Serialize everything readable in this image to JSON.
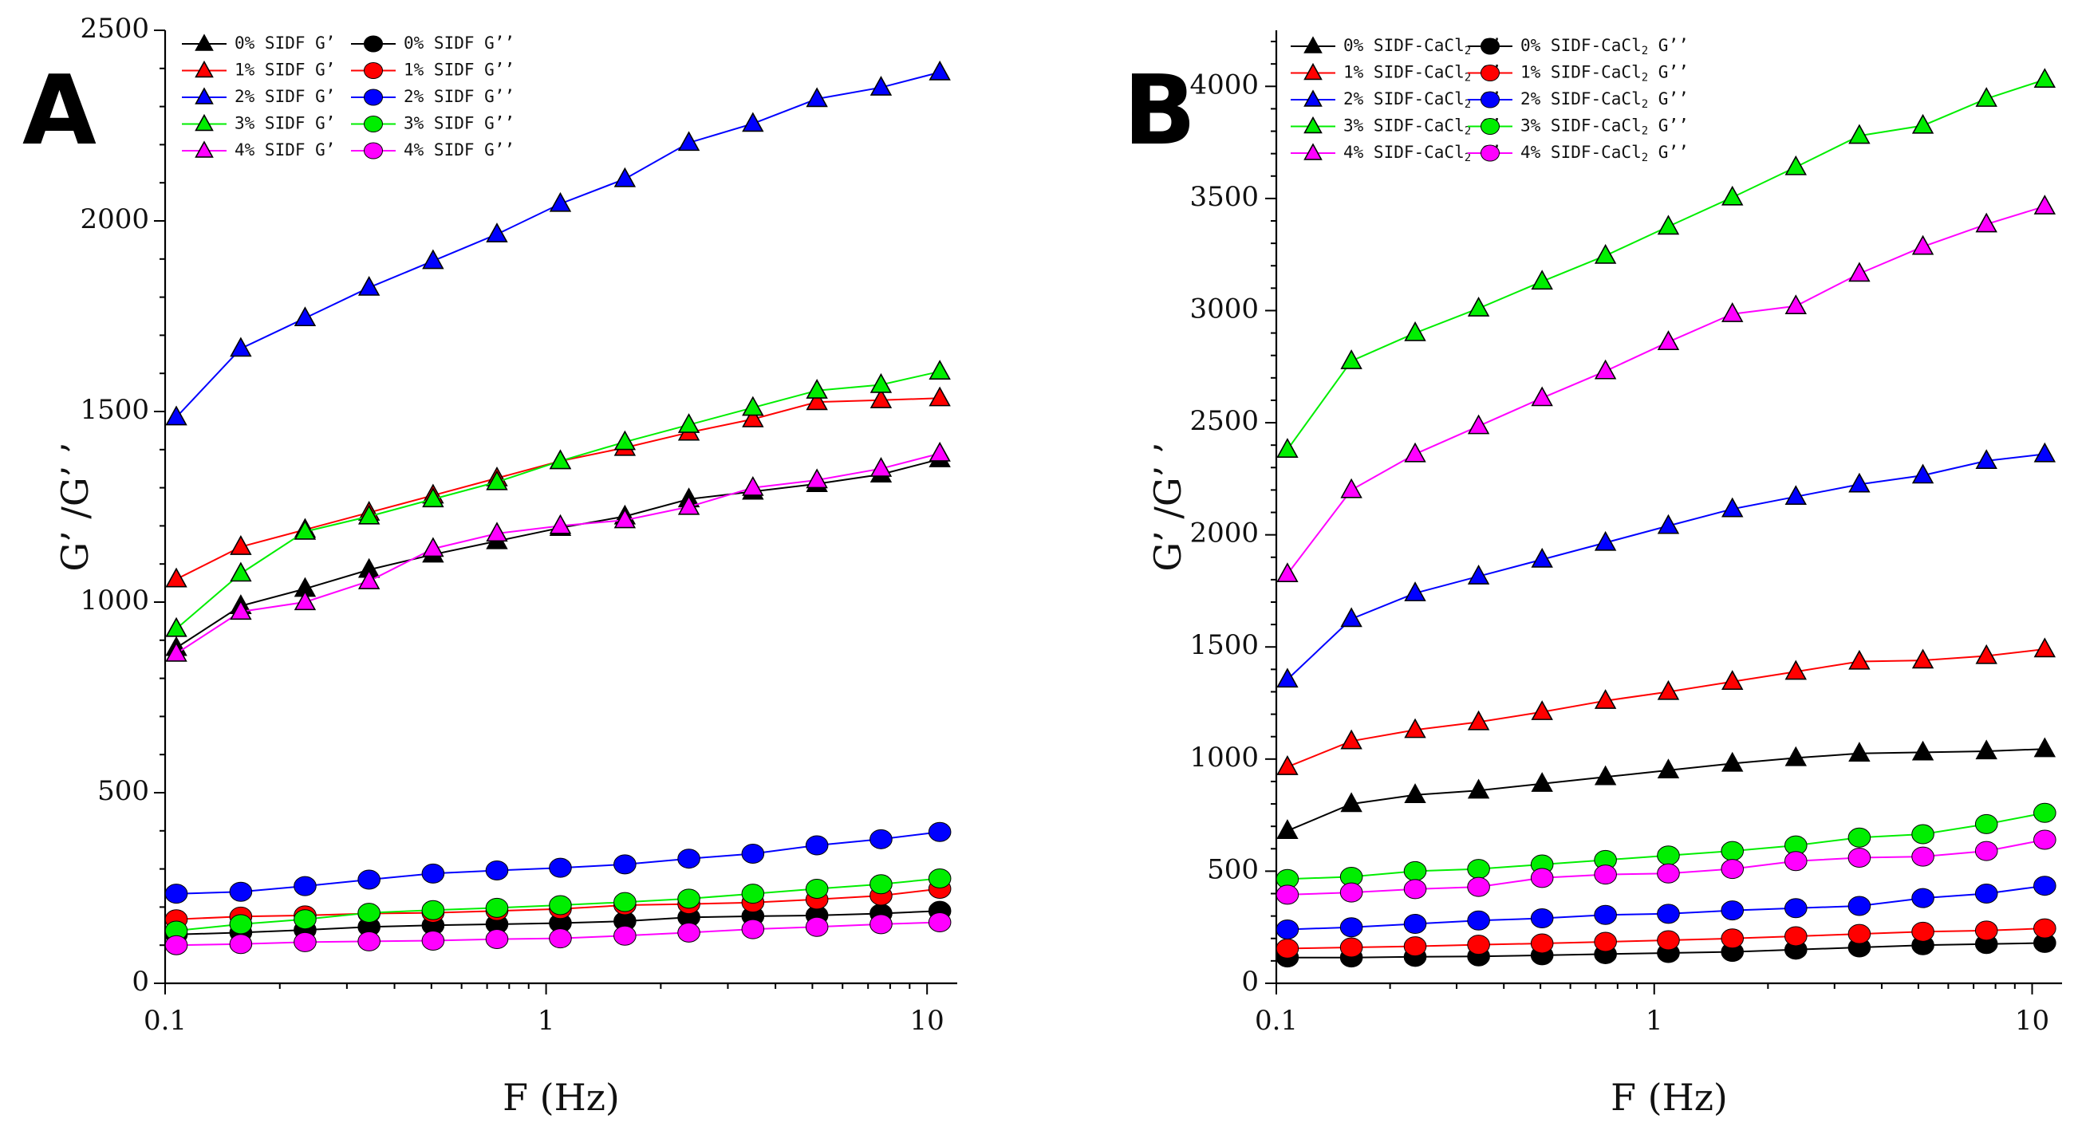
{
  "chart_data": [
    {
      "panel_label": "A",
      "type": "line",
      "xscale": "log",
      "xlabel": "F (Hz)",
      "ylabel": "G’ /G’ ’",
      "xlim": [
        0.1,
        12
      ],
      "ylim": [
        0,
        2500
      ],
      "x_ticks": [
        0.1,
        1,
        10
      ],
      "x_tick_labels": [
        "0.1",
        "1",
        "10"
      ],
      "y_ticks": [
        0,
        500,
        1000,
        1500,
        2000,
        2500
      ],
      "y_tick_labels": [
        "0",
        "500",
        "1000",
        "1500",
        "2000",
        "2500"
      ],
      "legend_position": "top-left",
      "x": [
        0.107,
        0.158,
        0.233,
        0.343,
        0.505,
        0.743,
        1.09,
        1.61,
        2.37,
        3.49,
        5.14,
        7.57,
        10.8
      ],
      "series": [
        {
          "name": "0% SIDF G’",
          "marker": "triangle",
          "color": "#000000",
          "values": [
            880,
            990,
            1035,
            1085,
            1125,
            1160,
            1195,
            1225,
            1270,
            1290,
            1310,
            1335,
            1375
          ]
        },
        {
          "name": "1% SIDF G’",
          "marker": "triangle",
          "color": "#ff0000",
          "values": [
            1060,
            1145,
            1190,
            1235,
            1280,
            1325,
            1370,
            1405,
            1445,
            1480,
            1525,
            1530,
            1535
          ]
        },
        {
          "name": "2% SIDF G’",
          "marker": "triangle",
          "color": "#0000ff",
          "values": [
            1485,
            1665,
            1745,
            1825,
            1895,
            1965,
            2045,
            2110,
            2205,
            2255,
            2320,
            2350,
            2390
          ]
        },
        {
          "name": "3% SIDF G’",
          "marker": "triangle",
          "color": "#00ee00",
          "values": [
            930,
            1075,
            1185,
            1225,
            1270,
            1315,
            1370,
            1420,
            1465,
            1510,
            1555,
            1570,
            1605
          ]
        },
        {
          "name": "4% SIDF G’",
          "marker": "triangle",
          "color": "#ff00ff",
          "values": [
            865,
            975,
            1000,
            1055,
            1140,
            1180,
            1200,
            1215,
            1250,
            1300,
            1320,
            1350,
            1390
          ]
        },
        {
          "name": "0% SIDF G’’",
          "marker": "circle",
          "color": "#000000",
          "values": [
            128,
            133,
            140,
            148,
            152,
            155,
            158,
            163,
            173,
            176,
            178,
            183,
            190
          ]
        },
        {
          "name": "1% SIDF G’’",
          "marker": "circle",
          "color": "#ff0000",
          "values": [
            168,
            175,
            178,
            183,
            185,
            190,
            195,
            205,
            208,
            212,
            220,
            230,
            248
          ]
        },
        {
          "name": "2% SIDF G’’",
          "marker": "circle",
          "color": "#0000ff",
          "values": [
            235,
            240,
            255,
            272,
            288,
            296,
            303,
            312,
            327,
            340,
            362,
            378,
            397
          ]
        },
        {
          "name": "3% SIDF G’’",
          "marker": "circle",
          "color": "#00ee00",
          "values": [
            138,
            155,
            168,
            185,
            192,
            198,
            205,
            213,
            222,
            235,
            248,
            260,
            275
          ]
        },
        {
          "name": "4% SIDF G’’",
          "marker": "circle",
          "color": "#ff00ff",
          "values": [
            100,
            103,
            108,
            110,
            112,
            116,
            118,
            125,
            133,
            142,
            148,
            155,
            160
          ]
        }
      ]
    },
    {
      "panel_label": "B",
      "type": "line",
      "xscale": "log",
      "xlabel": "F (Hz)",
      "ylabel": "G’ /G’ ’",
      "xlim": [
        0.1,
        12
      ],
      "ylim": [
        0,
        4250
      ],
      "x_ticks": [
        0.1,
        1,
        10
      ],
      "x_tick_labels": [
        "0.1",
        "1",
        "10"
      ],
      "y_ticks": [
        0,
        500,
        1000,
        1500,
        2000,
        2500,
        3000,
        3500,
        4000
      ],
      "y_tick_labels": [
        "0",
        "500",
        "1000",
        "1500",
        "2000",
        "2500",
        "3000",
        "3500",
        "4000"
      ],
      "legend_position": "top-left",
      "x": [
        0.107,
        0.158,
        0.233,
        0.343,
        0.505,
        0.743,
        1.09,
        1.61,
        2.37,
        3.49,
        5.14,
        7.57,
        10.8
      ],
      "series": [
        {
          "name": "0% SIDF-CaCl2 G’",
          "marker": "triangle",
          "color": "#000000",
          "values": [
            680,
            800,
            840,
            860,
            890,
            920,
            950,
            980,
            1005,
            1025,
            1030,
            1035,
            1045
          ]
        },
        {
          "name": "1% SIDF-CaCl2 G’",
          "marker": "triangle",
          "color": "#ff0000",
          "values": [
            965,
            1080,
            1130,
            1165,
            1210,
            1260,
            1300,
            1345,
            1390,
            1435,
            1440,
            1460,
            1490
          ]
        },
        {
          "name": "2% SIDF-CaCl2 G’",
          "marker": "triangle",
          "color": "#0000ff",
          "values": [
            1355,
            1625,
            1740,
            1815,
            1890,
            1965,
            2040,
            2115,
            2170,
            2225,
            2265,
            2330,
            2360
          ]
        },
        {
          "name": "3% SIDF-CaCl2 G’",
          "marker": "triangle",
          "color": "#00ee00",
          "values": [
            2380,
            2775,
            2900,
            3010,
            3130,
            3245,
            3375,
            3505,
            3640,
            3780,
            3825,
            3945,
            4030
          ]
        },
        {
          "name": "4% SIDF-CaCl2 G’",
          "marker": "triangle",
          "color": "#ff00ff",
          "values": [
            1825,
            2200,
            2360,
            2485,
            2610,
            2730,
            2860,
            2985,
            3020,
            3165,
            3285,
            3385,
            3465
          ]
        },
        {
          "name": "0% SIDF-CaCl2 G’’",
          "marker": "circle",
          "color": "#000000",
          "values": [
            115,
            115,
            118,
            120,
            125,
            130,
            135,
            140,
            150,
            160,
            170,
            175,
            180
          ]
        },
        {
          "name": "1% SIDF-CaCl2 G’’",
          "marker": "circle",
          "color": "#ff0000",
          "values": [
            155,
            160,
            165,
            172,
            178,
            185,
            192,
            200,
            210,
            220,
            230,
            235,
            245
          ]
        },
        {
          "name": "2% SIDF-CaCl2 G’’",
          "marker": "circle",
          "color": "#0000ff",
          "values": [
            240,
            250,
            265,
            280,
            290,
            305,
            310,
            325,
            335,
            345,
            380,
            400,
            435
          ]
        },
        {
          "name": "3% SIDF-CaCl2 G’’",
          "marker": "circle",
          "color": "#00ee00",
          "values": [
            465,
            475,
            500,
            510,
            530,
            550,
            570,
            590,
            615,
            650,
            665,
            710,
            760
          ]
        },
        {
          "name": "4% SIDF-CaCl2 G’’",
          "marker": "circle",
          "color": "#ff00ff",
          "values": [
            395,
            405,
            420,
            430,
            470,
            485,
            490,
            510,
            545,
            560,
            565,
            590,
            640
          ]
        }
      ]
    }
  ]
}
